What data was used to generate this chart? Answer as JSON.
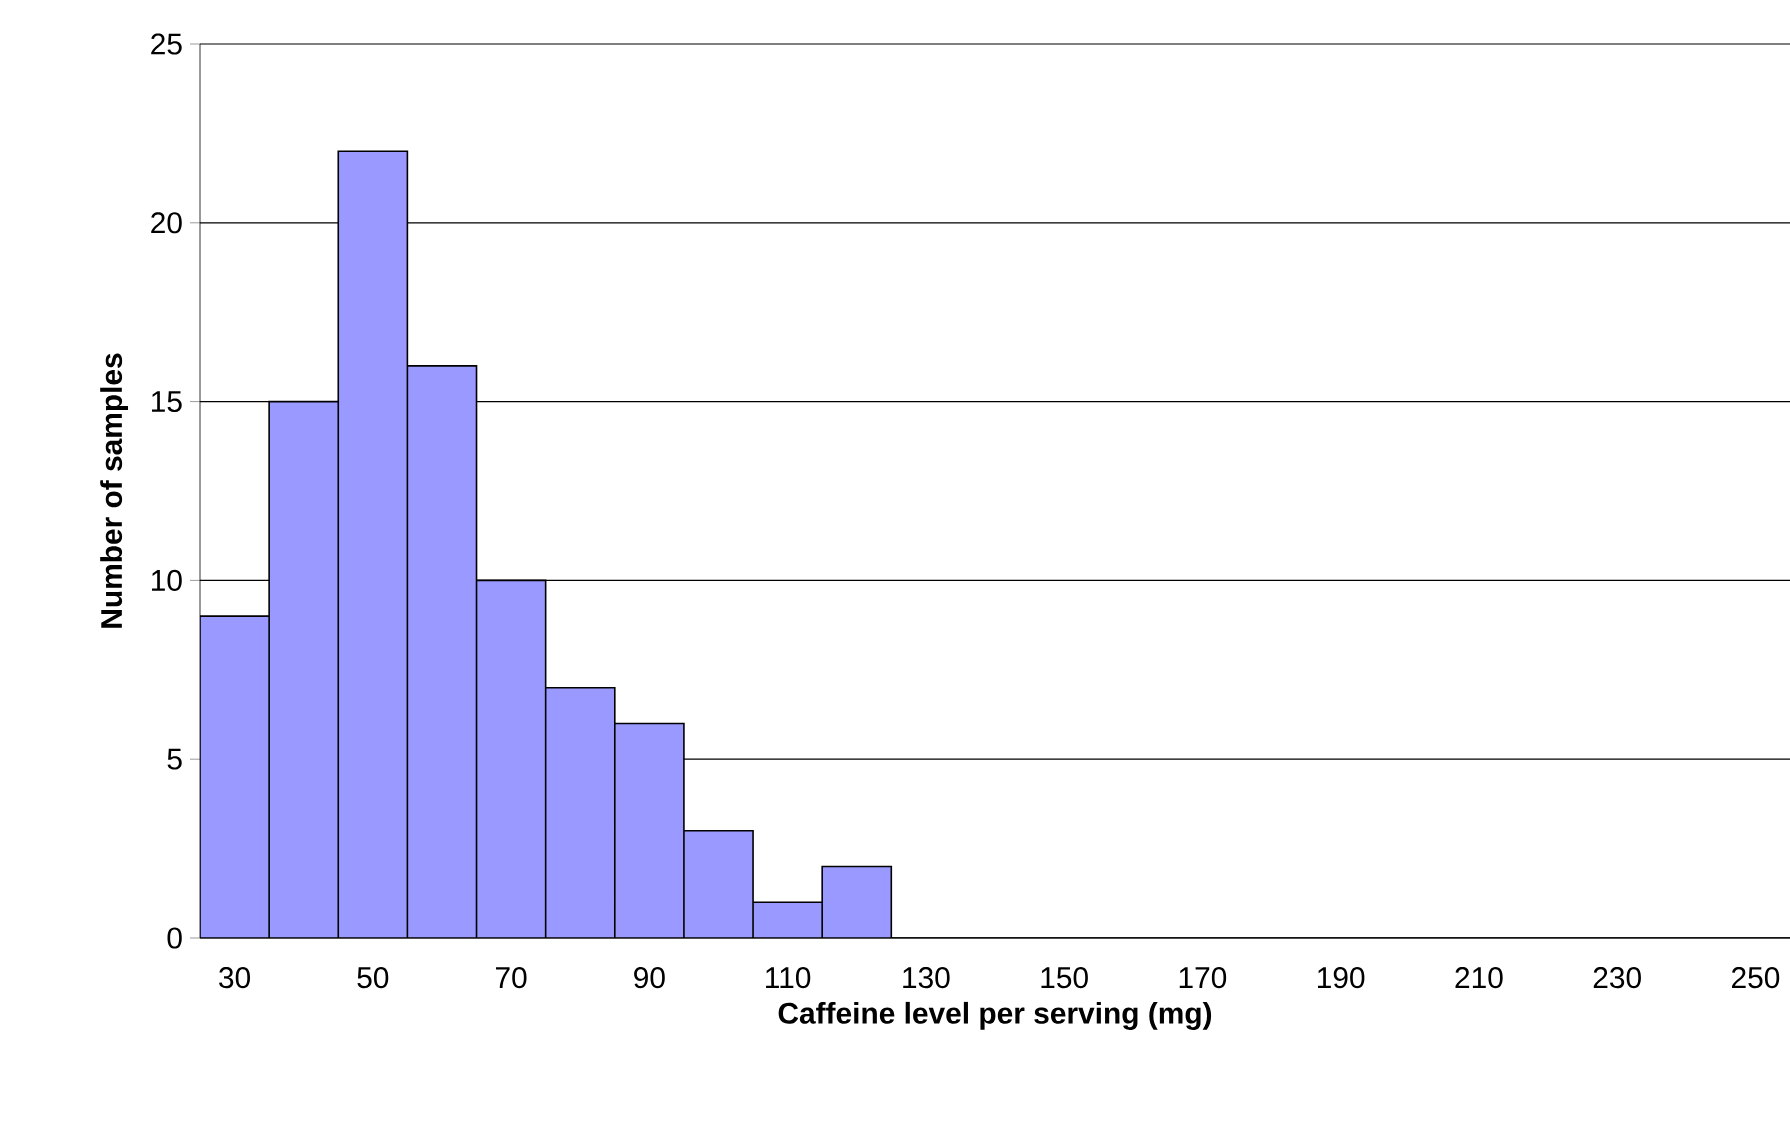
{
  "chart_data": {
    "type": "bar",
    "xlabel": "Caffeine level per serving (mg)",
    "ylabel": "Number of samples",
    "categories": [
      "30",
      null,
      "50",
      null,
      "70",
      null,
      "90",
      null,
      "110",
      null,
      "130",
      null,
      "150",
      null,
      "170",
      null,
      "190",
      null,
      "210",
      null,
      "230",
      null,
      "250"
    ],
    "values": [
      9,
      15,
      22,
      16,
      10,
      7,
      6,
      3,
      1,
      2,
      0,
      0,
      0,
      0,
      0,
      0,
      0,
      0,
      0,
      0,
      0,
      0,
      0
    ],
    "color": "#9999ff",
    "ylim": [
      0,
      25
    ],
    "yticks": [
      0,
      5,
      10,
      15,
      20,
      25
    ],
    "grid": "y"
  }
}
